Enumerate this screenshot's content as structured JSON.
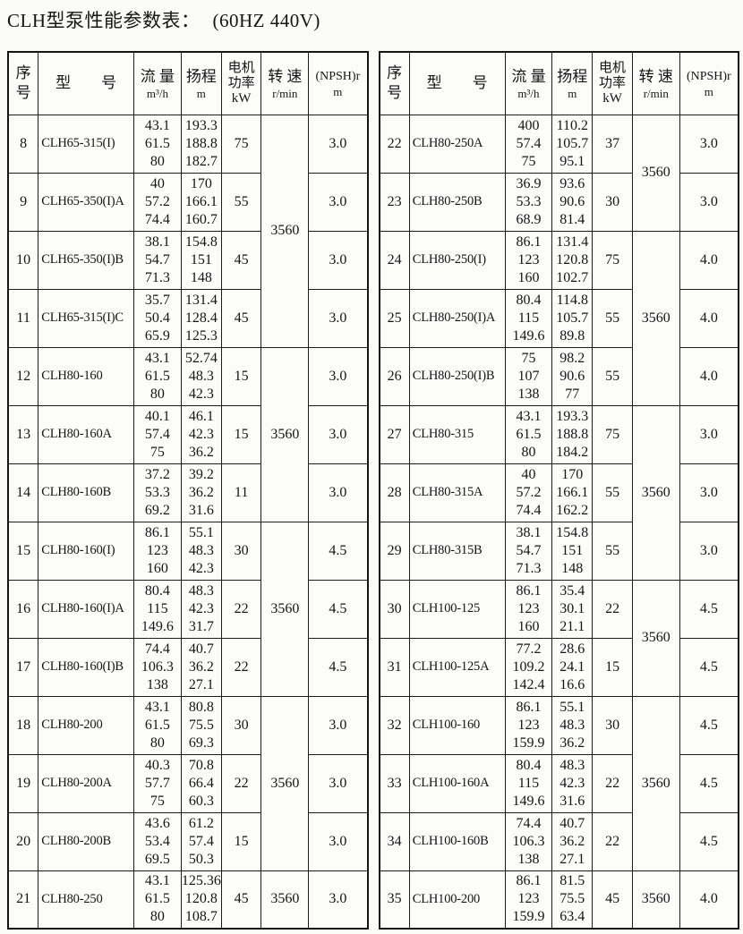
{
  "title": {
    "main": "CLH型泵性能参数表：",
    "voltage": "(60HZ 440V)"
  },
  "header": {
    "seq_top": "序",
    "seq_bottom": "号",
    "model": "型　　号",
    "flow_label": "流 量",
    "flow_unit": "m³/h",
    "head_label": "扬程",
    "head_unit": "m",
    "power_l1": "电机",
    "power_l2": "功率",
    "power_l3": "kW",
    "speed_label": "转 速",
    "speed_unit": "r/min",
    "npsh_label": "(NPSH)r",
    "npsh_unit": "m"
  },
  "left_table": {
    "rows": [
      {
        "no": "8",
        "model": "CLH65-315(I)",
        "flow": [
          "43.1",
          "61.5",
          "80"
        ],
        "head": [
          "193.3",
          "188.8",
          "182.7"
        ],
        "power": "75",
        "npsh": "3.0"
      },
      {
        "no": "9",
        "model": "CLH65-350(I)A",
        "flow": [
          "40",
          "57.2",
          "74.4"
        ],
        "head": [
          "170",
          "166.1",
          "160.7"
        ],
        "power": "55",
        "npsh": "3.0"
      },
      {
        "no": "10",
        "model": "CLH65-350(I)B",
        "flow": [
          "38.1",
          "54.7",
          "71.3"
        ],
        "head": [
          "154.8",
          "151",
          "148"
        ],
        "power": "45",
        "npsh": "3.0"
      },
      {
        "no": "11",
        "model": "CLH65-315(I)C",
        "flow": [
          "35.7",
          "50.4",
          "65.9"
        ],
        "head": [
          "131.4",
          "128.4",
          "125.3"
        ],
        "power": "45",
        "npsh": "3.0"
      },
      {
        "no": "12",
        "model": "CLH80-160",
        "flow": [
          "43.1",
          "61.5",
          "80"
        ],
        "head": [
          "52.74",
          "48.3",
          "42.3"
        ],
        "power": "15",
        "npsh": "3.0"
      },
      {
        "no": "13",
        "model": "CLH80-160A",
        "flow": [
          "40.1",
          "57.4",
          "75"
        ],
        "head": [
          "46.1",
          "42.3",
          "36.2"
        ],
        "power": "15",
        "npsh": "3.0"
      },
      {
        "no": "14",
        "model": "CLH80-160B",
        "flow": [
          "37.2",
          "53.3",
          "69.2"
        ],
        "head": [
          "39.2",
          "36.2",
          "31.6"
        ],
        "power": "11",
        "npsh": "3.0"
      },
      {
        "no": "15",
        "model": "CLH80-160(I)",
        "flow": [
          "86.1",
          "123",
          "160"
        ],
        "head": [
          "55.1",
          "48.3",
          "42.3"
        ],
        "power": "30",
        "npsh": "4.5"
      },
      {
        "no": "16",
        "model": "CLH80-160(I)A",
        "flow": [
          "80.4",
          "115",
          "149.6"
        ],
        "head": [
          "48.3",
          "42.3",
          "31.7"
        ],
        "power": "22",
        "npsh": "4.5"
      },
      {
        "no": "17",
        "model": "CLH80-160(I)B",
        "flow": [
          "74.4",
          "106.3",
          "138"
        ],
        "head": [
          "40.7",
          "36.2",
          "27.1"
        ],
        "power": "22",
        "npsh": "4.5"
      },
      {
        "no": "18",
        "model": "CLH80-200",
        "flow": [
          "43.1",
          "61.5",
          "80"
        ],
        "head": [
          "80.8",
          "75.5",
          "69.3"
        ],
        "power": "30",
        "npsh": "3.0"
      },
      {
        "no": "19",
        "model": "CLH80-200A",
        "flow": [
          "40.3",
          "57.7",
          "75"
        ],
        "head": [
          "70.8",
          "66.4",
          "60.3"
        ],
        "power": "22",
        "npsh": "3.0"
      },
      {
        "no": "20",
        "model": "CLH80-200B",
        "flow": [
          "43.6",
          "53.4",
          "69.5"
        ],
        "head": [
          "61.2",
          "57.4",
          "50.3"
        ],
        "power": "15",
        "npsh": "3.0"
      },
      {
        "no": "21",
        "model": "CLH80-250",
        "flow": [
          "43.1",
          "61.5",
          "80"
        ],
        "head": [
          "125.36",
          "120.8",
          "108.7"
        ],
        "power": "45",
        "npsh": "3.0"
      }
    ],
    "speed_groups": [
      {
        "span": 4,
        "value": "3560"
      },
      {
        "span": 3,
        "value": "3560"
      },
      {
        "span": 3,
        "value": "3560"
      },
      {
        "span": 3,
        "value": "3560"
      },
      {
        "span": 1,
        "value": "3560"
      }
    ]
  },
  "right_table": {
    "rows": [
      {
        "no": "22",
        "model": "CLH80-250A",
        "flow": [
          "400",
          "57.4",
          "75"
        ],
        "head": [
          "110.2",
          "105.7",
          "95.1"
        ],
        "power": "37",
        "npsh": "3.0"
      },
      {
        "no": "23",
        "model": "CLH80-250B",
        "flow": [
          "36.9",
          "53.3",
          "68.9"
        ],
        "head": [
          "93.6",
          "90.6",
          "81.4"
        ],
        "power": "30",
        "npsh": "3.0"
      },
      {
        "no": "24",
        "model": "CLH80-250(I)",
        "flow": [
          "86.1",
          "123",
          "160"
        ],
        "head": [
          "131.4",
          "120.8",
          "102.7"
        ],
        "power": "75",
        "npsh": "4.0"
      },
      {
        "no": "25",
        "model": "CLH80-250(I)A",
        "flow": [
          "80.4",
          "115",
          "149.6"
        ],
        "head": [
          "114.8",
          "105.7",
          "89.8"
        ],
        "power": "55",
        "npsh": "4.0"
      },
      {
        "no": "26",
        "model": "CLH80-250(I)B",
        "flow": [
          "75",
          "107",
          "138"
        ],
        "head": [
          "98.2",
          "90.6",
          "77"
        ],
        "power": "55",
        "npsh": "4.0"
      },
      {
        "no": "27",
        "model": "CLH80-315",
        "flow": [
          "43.1",
          "61.5",
          "80"
        ],
        "head": [
          "193.3",
          "188.8",
          "184.2"
        ],
        "power": "75",
        "npsh": "3.0"
      },
      {
        "no": "28",
        "model": "CLH80-315A",
        "flow": [
          "40",
          "57.2",
          "74.4"
        ],
        "head": [
          "170",
          "166.1",
          "162.2"
        ],
        "power": "55",
        "npsh": "3.0"
      },
      {
        "no": "29",
        "model": "CLH80-315B",
        "flow": [
          "38.1",
          "54.7",
          "71.3"
        ],
        "head": [
          "154.8",
          "151",
          "148"
        ],
        "power": "55",
        "npsh": "3.0"
      },
      {
        "no": "30",
        "model": "CLH100-125",
        "flow": [
          "86.1",
          "123",
          "160"
        ],
        "head": [
          "35.4",
          "30.1",
          "21.1"
        ],
        "power": "22",
        "npsh": "4.5"
      },
      {
        "no": "31",
        "model": "CLH100-125A",
        "flow": [
          "77.2",
          "109.2",
          "142.4"
        ],
        "head": [
          "28.6",
          "24.1",
          "16.6"
        ],
        "power": "15",
        "npsh": "4.5"
      },
      {
        "no": "32",
        "model": "CLH100-160",
        "flow": [
          "86.1",
          "123",
          "159.9"
        ],
        "head": [
          "55.1",
          "48.3",
          "36.2"
        ],
        "power": "30",
        "npsh": "4.5"
      },
      {
        "no": "33",
        "model": "CLH100-160A",
        "flow": [
          "80.4",
          "115",
          "149.6"
        ],
        "head": [
          "48.3",
          "42.3",
          "31.6"
        ],
        "power": "22",
        "npsh": "4.5"
      },
      {
        "no": "34",
        "model": "CLH100-160B",
        "flow": [
          "74.4",
          "106.3",
          "138"
        ],
        "head": [
          "40.7",
          "36.2",
          "27.1"
        ],
        "power": "22",
        "npsh": "4.5"
      },
      {
        "no": "35",
        "model": "CLH100-200",
        "flow": [
          "86.1",
          "123",
          "159.9"
        ],
        "head": [
          "81.5",
          "75.5",
          "63.4"
        ],
        "power": "45",
        "npsh": "4.0"
      }
    ],
    "speed_groups": [
      {
        "span": 2,
        "value": "3560"
      },
      {
        "span": 3,
        "value": "3560"
      },
      {
        "span": 3,
        "value": "3560"
      },
      {
        "span": 2,
        "value": "3560"
      },
      {
        "span": 3,
        "value": "3560"
      },
      {
        "span": 1,
        "value": "3560"
      }
    ]
  }
}
